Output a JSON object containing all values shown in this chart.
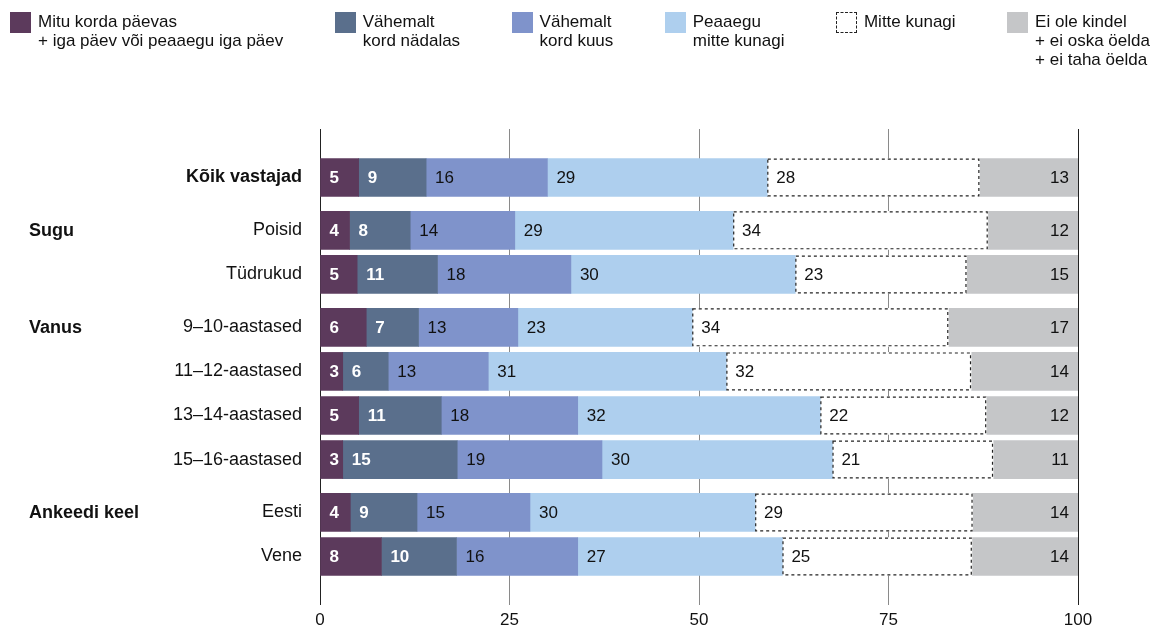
{
  "chart_data": {
    "type": "bar",
    "orientation": "horizontal",
    "stacked": true,
    "categories": [
      "Kõik vastajad",
      "Poisid",
      "Tüdrukud",
      "9–10-aastased",
      "11–12-aastased",
      "13–14-aastased",
      "15–16-aastased",
      "Eesti",
      "Vene"
    ],
    "series": [
      {
        "name": "Mitu korda päevas\n+ iga päev või peaaegu iga päev",
        "color": "#5c3a5c",
        "values": [
          5.1,
          3.9,
          4.9,
          6.1,
          3.0,
          5.1,
          3.0,
          4.0,
          8.1
        ],
        "value_labels": [
          "5",
          "4",
          "5",
          "6",
          "3",
          "5",
          "3",
          "4",
          "8"
        ]
      },
      {
        "name": "Vähemalt\nkord nädalas",
        "color": "#5a6f8c",
        "values": [
          8.9,
          8.0,
          10.6,
          6.9,
          6.0,
          10.9,
          15.1,
          8.8,
          9.9
        ],
        "value_labels": [
          "9",
          "8",
          "11",
          "7",
          "6",
          "11",
          "15",
          "9",
          "10"
        ]
      },
      {
        "name": "Vähemalt\nkord kuus",
        "color": "#7f93cb",
        "values": [
          16.0,
          13.8,
          17.6,
          13.1,
          13.2,
          18.0,
          19.1,
          14.9,
          16.0
        ],
        "value_labels": [
          "16",
          "14",
          "18",
          "13",
          "13",
          "18",
          "19",
          "15",
          "16"
        ]
      },
      {
        "name": "Peaaegu\nmitte kunagi",
        "color": "#aecfee",
        "values": [
          29.0,
          28.8,
          29.6,
          23.0,
          31.4,
          32.0,
          30.4,
          29.7,
          27.0
        ],
        "value_labels": [
          "29",
          "29",
          "30",
          "23",
          "31",
          "32",
          "30",
          "30",
          "27"
        ]
      },
      {
        "name": "Mitte kunagi",
        "color": "#ffffff",
        "line_style": "dashed",
        "values": [
          28.0,
          33.6,
          22.6,
          33.8,
          32.3,
          21.9,
          21.2,
          28.7,
          25.0
        ],
        "value_labels": [
          "28",
          "34",
          "23",
          "34",
          "32",
          "22",
          "21",
          "29",
          "25"
        ]
      },
      {
        "name": "Ei ole kindel\n+ ei oska öelda\n+ ei taha öelda",
        "color": "#c5c6c8",
        "values": [
          13.0,
          11.9,
          14.7,
          17.1,
          14.1,
          12.1,
          11.2,
          13.9,
          14.0
        ],
        "value_labels": [
          "13",
          "12",
          "15",
          "17",
          "14",
          "12",
          "11",
          "14",
          "14"
        ]
      }
    ],
    "xlim": [
      0,
      100
    ],
    "xticks": [
      0,
      25,
      50,
      75,
      100
    ],
    "grid": "x",
    "legend": "top",
    "annotations": [
      "Sugu",
      "Vanus",
      "Ankeedi keel"
    ]
  }
}
